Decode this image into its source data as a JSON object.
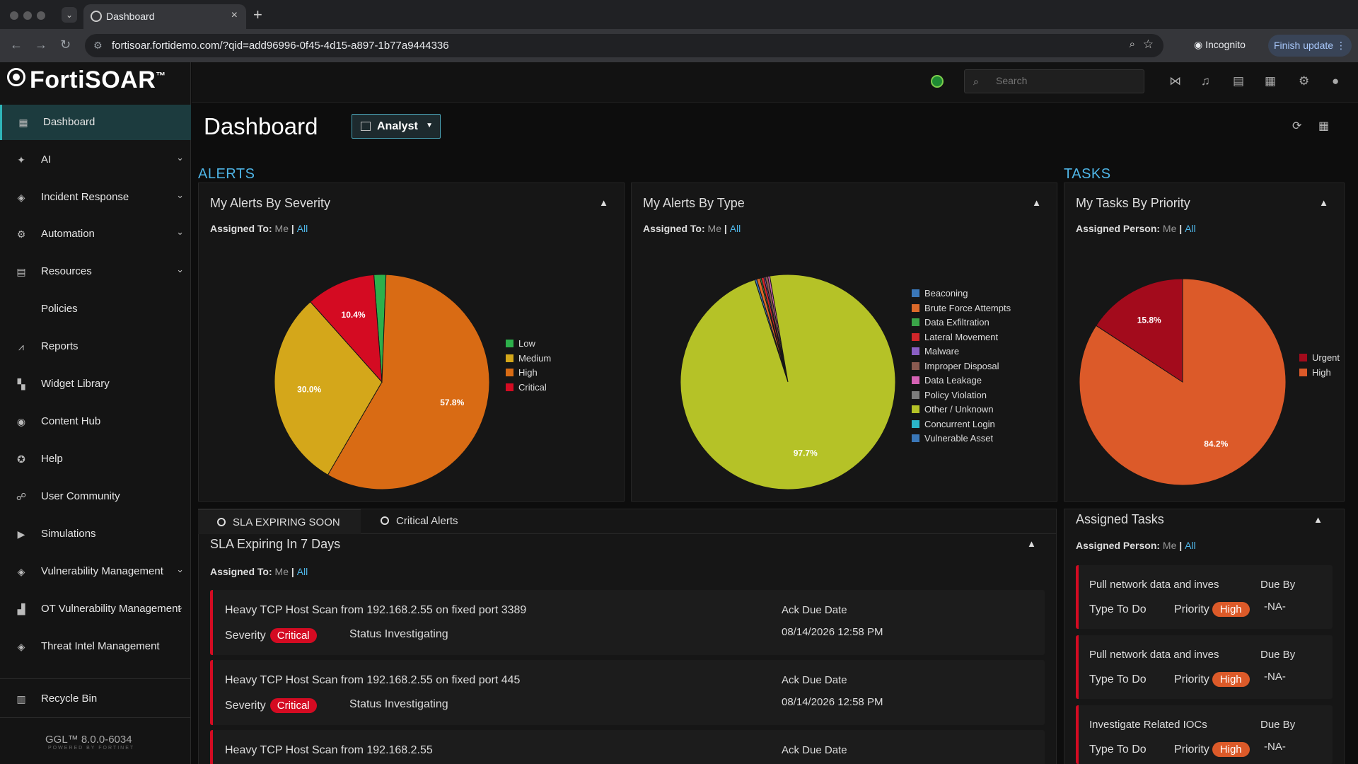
{
  "browser": {
    "tab_title": "Dashboard",
    "url": "fortisoar.fortidemo.com/?qid=add96996-0f45-4d15-a897-1b77a9444336",
    "incognito_label": "Incognito",
    "finish_update_label": "Finish update"
  },
  "app": {
    "logo_text": "FortiSOAR",
    "logo_tm": "™",
    "search_placeholder": "Search",
    "version": "GGL™  8.0.0-6034",
    "powered_by": "POWERED BY FORTINET"
  },
  "sidebar": {
    "items": [
      {
        "label": "Dashboard",
        "icon": "dashboard-icon"
      },
      {
        "label": "AI",
        "icon": "sparkle-icon"
      },
      {
        "label": "Incident Response",
        "icon": "shield-icon"
      },
      {
        "label": "Automation",
        "icon": "automation-icon"
      },
      {
        "label": "Resources",
        "icon": "resources-icon"
      },
      {
        "label": "Policies",
        "icon": ""
      },
      {
        "label": "Reports",
        "icon": "chart-icon"
      },
      {
        "label": "Widget Library",
        "icon": "widgets-icon"
      },
      {
        "label": "Content Hub",
        "icon": "content-hub-icon"
      },
      {
        "label": "Help",
        "icon": "help-icon"
      },
      {
        "label": "User Community",
        "icon": "community-icon"
      },
      {
        "label": "Simulations",
        "icon": "play-icon"
      },
      {
        "label": "Vulnerability Management",
        "icon": "shield-icon"
      },
      {
        "label": "OT Vulnerability Management",
        "icon": "factory-icon"
      },
      {
        "label": "Threat Intel Management",
        "icon": "shield-icon"
      },
      {
        "label": "Recycle Bin",
        "icon": "trash-icon"
      }
    ]
  },
  "page": {
    "title": "Dashboard",
    "view_selector": "Analyst",
    "alerts_heading": "ALERTS",
    "tasks_heading": "TASKS"
  },
  "widgets": {
    "severity": {
      "title": "My Alerts By Severity",
      "assign_label": "Assigned To:",
      "me": "Me",
      "sep": "|",
      "all": "All"
    },
    "type": {
      "title": "My Alerts By Type",
      "assign_label": "Assigned To:",
      "me": "Me",
      "sep": "|",
      "all": "All"
    },
    "priority": {
      "title": "My Tasks By Priority",
      "assign_label": "Assigned Person:",
      "me": "Me",
      "sep": "|",
      "all": "All"
    }
  },
  "chart_data": [
    {
      "type": "pie",
      "title": "My Alerts By Severity",
      "labels": [
        "Low",
        "Medium",
        "High",
        "Critical"
      ],
      "values": [
        1.8,
        30.0,
        57.8,
        10.4
      ],
      "value_labels": [
        "",
        "30.0%",
        "57.8%",
        "10.4%"
      ],
      "colors": [
        "#2db04b",
        "#d4a71a",
        "#d96b14",
        "#d40b22"
      ],
      "legend_position": "right"
    },
    {
      "type": "pie",
      "title": "My Alerts By Type",
      "labels": [
        "Beaconing",
        "Brute Force Attempts",
        "Data Exfiltration",
        "Lateral Movement",
        "Malware",
        "Improper Disposal",
        "Data Leakage",
        "Policy Violation",
        "Other / Unknown",
        "Concurrent Login",
        "Vulnerable Asset"
      ],
      "values": [
        0.3,
        0.5,
        0.2,
        0.4,
        0.2,
        0.4,
        0.3,
        0,
        97.7,
        0,
        0
      ],
      "value_labels": [
        "",
        "",
        "",
        "",
        "",
        "",
        "",
        "",
        "97.7%",
        "",
        ""
      ],
      "colors": [
        "#3a77b8",
        "#dc6a2a",
        "#3aa548",
        "#d0262a",
        "#8a5fc4",
        "#8a5a50",
        "#d662b4",
        "#7d7d7d",
        "#b5c227",
        "#2bb5c8",
        "#3a77b8"
      ],
      "legend_position": "right"
    },
    {
      "type": "pie",
      "title": "My Tasks By Priority",
      "labels": [
        "Urgent",
        "High"
      ],
      "values": [
        15.8,
        84.2
      ],
      "value_labels": [
        "15.8%",
        "84.2%"
      ],
      "colors": [
        "#a30b1c",
        "#dc5a29"
      ],
      "legend_position": "right"
    }
  ],
  "sla": {
    "tab_sla": "SLA EXPIRING SOON",
    "tab_critical": "Critical Alerts",
    "title": "SLA Expiring In 7 Days",
    "assign_label": "Assigned To:",
    "me": "Me",
    "sep": "|",
    "all": "All",
    "rows": [
      {
        "name": "Heavy TCP Host Scan from 192.168.2.55 on fixed port 3389",
        "severity_label": "Severity",
        "severity": "Critical",
        "status": "Status Investigating",
        "ack_label": "Ack Due Date",
        "ack_date": "08/14/2026 12:58 PM"
      },
      {
        "name": "Heavy TCP Host Scan from 192.168.2.55 on fixed port 445",
        "severity_label": "Severity",
        "severity": "Critical",
        "status": "Status Investigating",
        "ack_label": "Ack Due Date",
        "ack_date": "08/14/2026 12:58 PM"
      },
      {
        "name": "Heavy TCP Host Scan from 192.168.2.55",
        "severity_label": "",
        "severity": "",
        "status": "",
        "ack_label": "Ack Due Date",
        "ack_date": ""
      }
    ]
  },
  "tasks": {
    "title": "Assigned Tasks",
    "assign_label": "Assigned Person:",
    "me": "Me",
    "sep": "|",
    "all": "All",
    "rows": [
      {
        "name": "Pull network data and inves",
        "due_label": "Due By",
        "type": "Type To Do",
        "priority_label": "Priority",
        "priority": "High",
        "due": "-NA-"
      },
      {
        "name": "Pull network data and inves",
        "due_label": "Due By",
        "type": "Type To Do",
        "priority_label": "Priority",
        "priority": "High",
        "due": "-NA-"
      },
      {
        "name": "Investigate Related IOCs",
        "due_label": "Due By",
        "type": "Type To Do",
        "priority_label": "Priority",
        "priority": "High",
        "due": "-NA-"
      }
    ]
  }
}
